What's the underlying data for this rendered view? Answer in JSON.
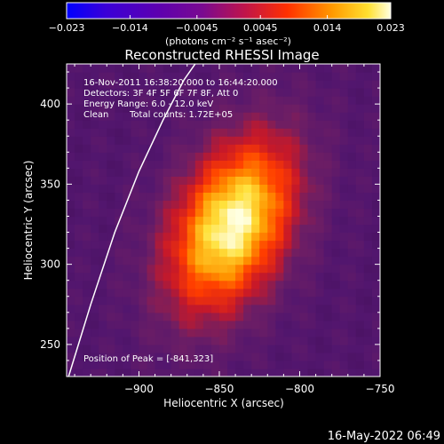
{
  "chart_data": {
    "type": "heatmap",
    "title": "Reconstructed RHESSI Image",
    "xlabel": "Heliocentric X (arcsec)",
    "ylabel": "Heliocentric Y (arcsec)",
    "xlim": [
      -945,
      -750
    ],
    "ylim": [
      230,
      425
    ],
    "x_ticks": [
      -900,
      -850,
      -800,
      -750
    ],
    "y_ticks": [
      250,
      300,
      350,
      400
    ],
    "x_tick_labels": [
      "−900",
      "−850",
      "−800",
      "−750"
    ],
    "y_tick_labels": [
      "250",
      "300",
      "350",
      "400"
    ],
    "colorbar": {
      "range": [
        -0.023,
        0.023
      ],
      "ticks": [
        -0.023,
        -0.014,
        -0.0045,
        0.0045,
        0.014,
        0.023
      ],
      "tick_labels": [
        "−0.023",
        "−0.014",
        "−0.0045",
        "0.0045",
        "0.014",
        "0.023"
      ],
      "label": "(photons cm⁻² s⁻¹ asec⁻²)"
    },
    "peak": {
      "x": -841,
      "y": 323,
      "value": 0.023
    },
    "source": {
      "center_x": -842,
      "center_y": 325,
      "sigma_x": 24,
      "sigma_y": 40,
      "angle_deg": 25
    },
    "limb_points": [
      [
        -945,
        226
      ],
      [
        -930,
        275
      ],
      [
        -915,
        320
      ],
      [
        -900,
        358
      ],
      [
        -885,
        390
      ],
      [
        -872,
        415
      ],
      [
        -865,
        425
      ]
    ]
  },
  "annotations": {
    "time_range": "16-Nov-2011 16:38:20.000 to 16:44:20.000",
    "detectors": "Detectors: 3F 4F 5F 6F 7F 8F, Att 0",
    "energy": "Energy Range: 6.0 - 12.0 keV",
    "clean": "Clean",
    "counts": "Total counts: 1.72E+05",
    "peak_position": "Position of Peak = [-841,323]"
  },
  "footer": {
    "date": "16-May-2022 06:49"
  }
}
